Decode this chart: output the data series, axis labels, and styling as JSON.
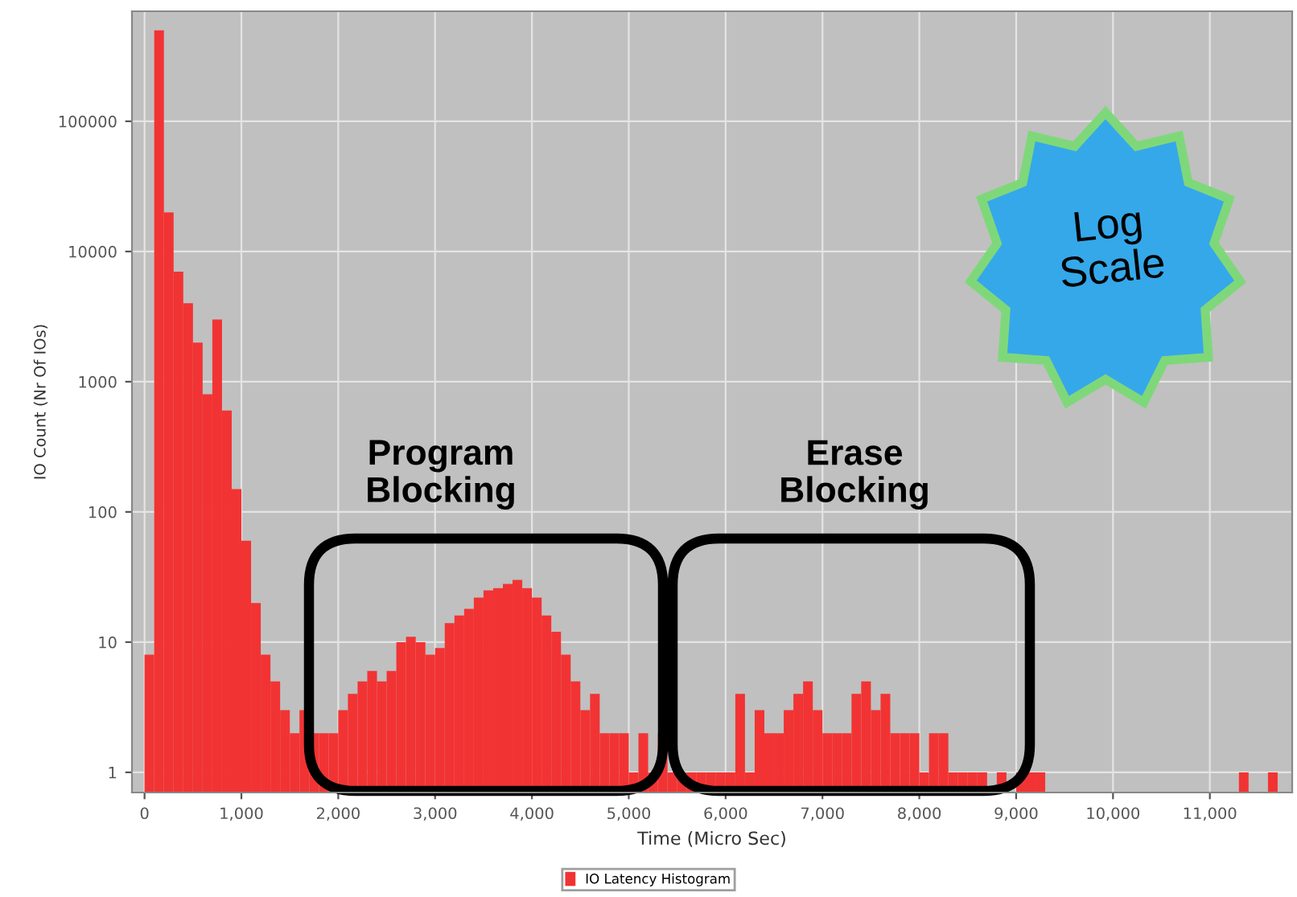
{
  "chart_data": {
    "type": "histogram",
    "xlabel": "Time (Micro Sec)",
    "ylabel": "IO Count (Nr Of IOs)",
    "bins": [
      0,
      100,
      200,
      300,
      400,
      500,
      600,
      700,
      800,
      900,
      1000,
      1100,
      1200,
      1300,
      1400,
      1500,
      1600,
      1700,
      1800,
      1900,
      2000,
      2100,
      2200,
      2300,
      2400,
      2500,
      2600,
      2700,
      2800,
      2900,
      3000,
      3100,
      3200,
      3300,
      3400,
      3500,
      3600,
      3700,
      3800,
      3900,
      4000,
      4100,
      4200,
      4300,
      4400,
      4500,
      4600,
      4700,
      4800,
      4900,
      5000,
      5100,
      5200,
      5300,
      5400,
      5500,
      5600,
      5700,
      5800,
      5900,
      6000,
      6100,
      6200,
      6300,
      6400,
      6500,
      6600,
      6700,
      6800,
      6900,
      7000,
      7100,
      7200,
      7300,
      7400,
      7500,
      7600,
      7700,
      7800,
      7900,
      8000,
      8100,
      8200,
      8300,
      8400,
      8500,
      8600,
      8700,
      8800,
      8900,
      9000,
      9100,
      9200,
      9300,
      9400,
      9500,
      9600,
      9700,
      9800,
      9900,
      10000,
      10100,
      10200,
      10300,
      10400,
      10500,
      10600,
      10700,
      10800,
      10900,
      11000,
      11100,
      11200,
      11300,
      11400,
      11500,
      11600,
      11700,
      11800
    ],
    "series": [
      {
        "name": "IO Latency Histogram",
        "color": "#f23333",
        "values": [
          8,
          500000,
          20000,
          7000,
          4000,
          2000,
          800,
          3000,
          600,
          150,
          60,
          20,
          8,
          5,
          3,
          2,
          3,
          2,
          2,
          2,
          3,
          4,
          5,
          6,
          5,
          6,
          10,
          11,
          10,
          8,
          9,
          14,
          16,
          18,
          22,
          25,
          26,
          28,
          30,
          26,
          22,
          16,
          12,
          8,
          5,
          3,
          4,
          2,
          2,
          2,
          1,
          2,
          1,
          2,
          1,
          1,
          1,
          1,
          1,
          1,
          1,
          4,
          1,
          3,
          2,
          2,
          3,
          4,
          5,
          3,
          2,
          2,
          2,
          4,
          5,
          3,
          4,
          2,
          2,
          2,
          1,
          2,
          2,
          1,
          1,
          1,
          1,
          null,
          1,
          null,
          1,
          1,
          1,
          null,
          null,
          null,
          null,
          null,
          null,
          null,
          null,
          null,
          null,
          null,
          null,
          null,
          null,
          null,
          null,
          null,
          null,
          null,
          null,
          1,
          null,
          null,
          1,
          null
        ]
      }
    ],
    "log": "y",
    "xlim": [
      -130,
      11850
    ],
    "ylim": [
      0.7,
      700000
    ],
    "xticks": [
      0,
      {
        "value": 1000,
        "label": "1,000"
      },
      {
        "value": 2000,
        "label": "2,000"
      },
      {
        "value": 3000,
        "label": "3,000"
      },
      {
        "value": 4000,
        "label": "4,000"
      },
      {
        "value": 5000,
        "label": "5,000"
      },
      {
        "value": 6000,
        "label": "6,000"
      },
      {
        "value": 7000,
        "label": "7,000"
      },
      {
        "value": 8000,
        "label": "8,000"
      },
      {
        "value": 9000,
        "label": "9,000"
      },
      {
        "value": 10000,
        "label": "10,000"
      },
      {
        "value": 11000,
        "label": "11,000"
      }
    ],
    "yticks": [
      1,
      10,
      100,
      1000,
      10000,
      100000
    ],
    "grid": true,
    "legend": "bottom",
    "annotations": [
      "Program\nBlocking",
      "Erase\nBlocking",
      "Log\nScale"
    ]
  }
}
